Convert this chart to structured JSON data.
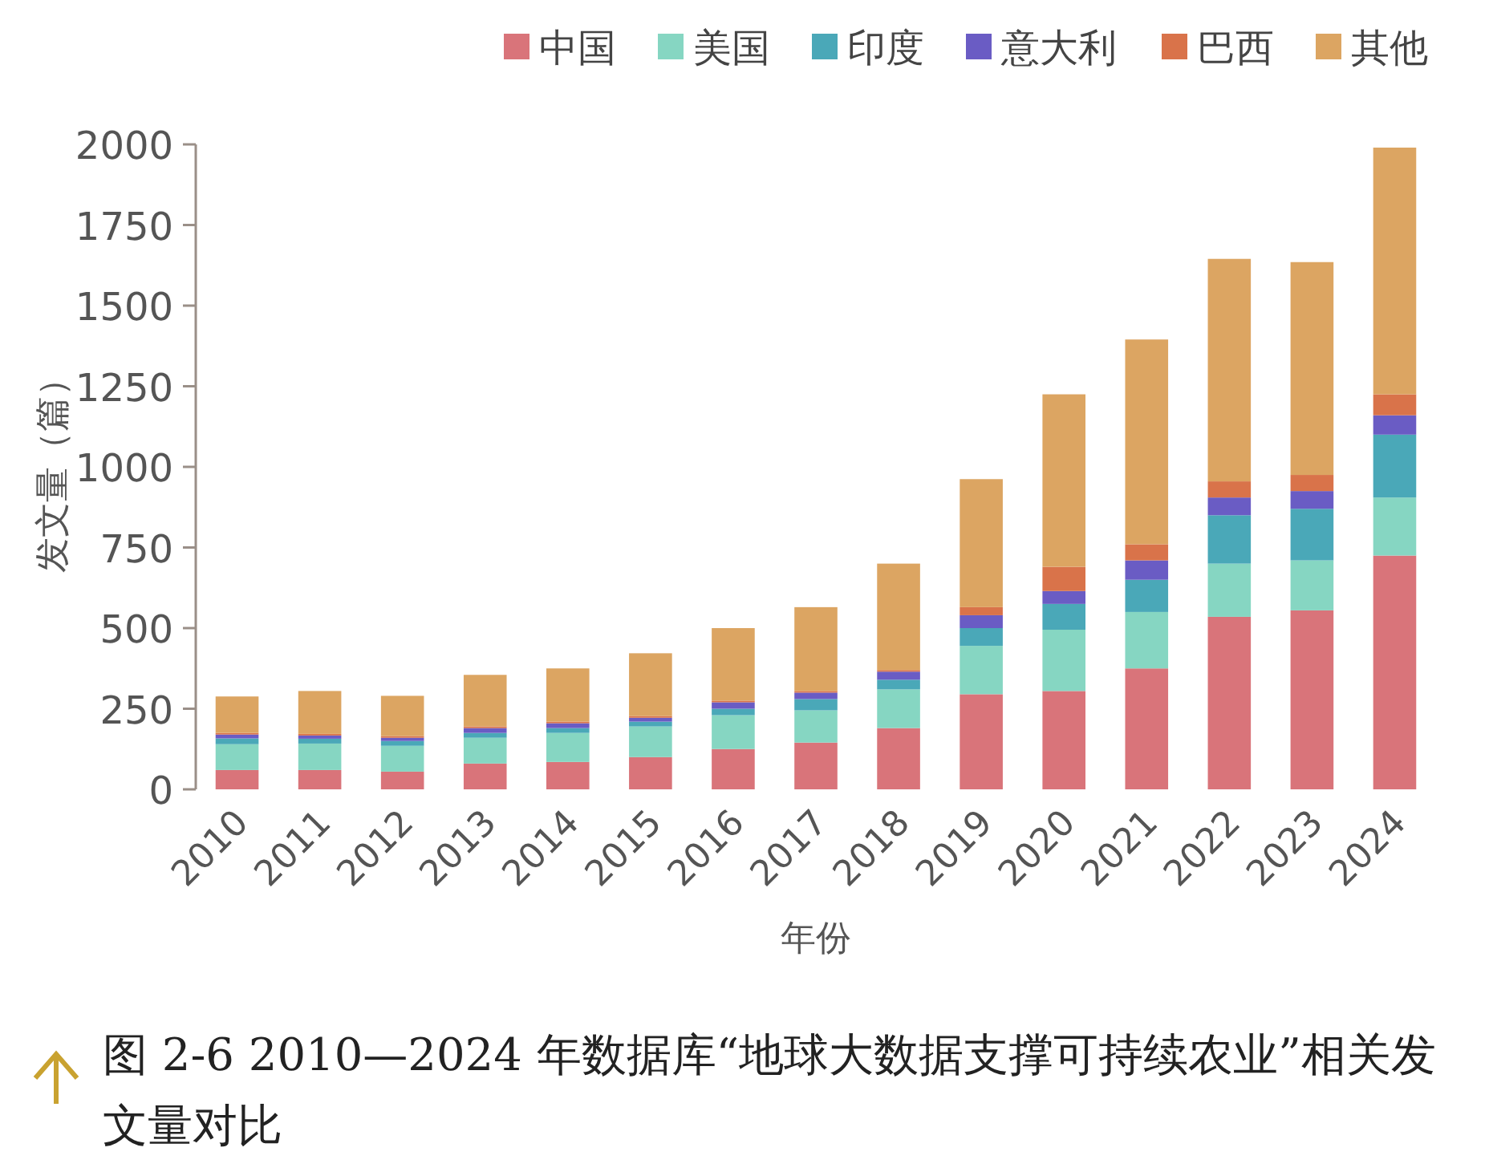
{
  "chart_data": {
    "type": "bar",
    "stacked": true,
    "ylabel": "发文量（篇）",
    "xlabel": "年份",
    "legend": "top right",
    "ylim": [
      0,
      2000
    ],
    "yticks": [
      0,
      250,
      500,
      750,
      1000,
      1250,
      1500,
      1750,
      2000
    ],
    "categories": [
      "2010",
      "2011",
      "2012",
      "2013",
      "2014",
      "2015",
      "2016",
      "2017",
      "2018",
      "2019",
      "2020",
      "2021",
      "2022",
      "2023",
      "2024"
    ],
    "series": [
      {
        "name": "中国",
        "color": "#d9747a",
        "values": [
          60,
          60,
          55,
          80,
          85,
          100,
          125,
          145,
          190,
          295,
          305,
          375,
          535,
          555,
          725
        ]
      },
      {
        "name": "美国",
        "color": "#86d6c2",
        "values": [
          80,
          82,
          80,
          80,
          90,
          95,
          105,
          100,
          120,
          150,
          190,
          175,
          165,
          155,
          180
        ]
      },
      {
        "name": "印度",
        "color": "#4aa8b8",
        "values": [
          18,
          15,
          15,
          15,
          15,
          15,
          20,
          35,
          30,
          55,
          80,
          100,
          150,
          160,
          195
        ]
      },
      {
        "name": "意大利",
        "color": "#6a5cc4",
        "values": [
          12,
          10,
          10,
          15,
          15,
          12,
          20,
          20,
          25,
          40,
          40,
          60,
          55,
          55,
          60
        ]
      },
      {
        "name": "巴西",
        "color": "#d9734a",
        "values": [
          5,
          5,
          5,
          5,
          5,
          5,
          5,
          5,
          5,
          25,
          75,
          50,
          50,
          50,
          65
        ]
      },
      {
        "name": "其他",
        "color": "#dca562",
        "values": [
          113,
          133,
          125,
          160,
          165,
          195,
          225,
          260,
          330,
          397,
          535,
          635,
          690,
          660,
          765
        ]
      }
    ],
    "annotations": [
      "图 2-6 2010—2024 年数据库“地球大数据支撑可持续农业”相关发文量对比"
    ]
  }
}
